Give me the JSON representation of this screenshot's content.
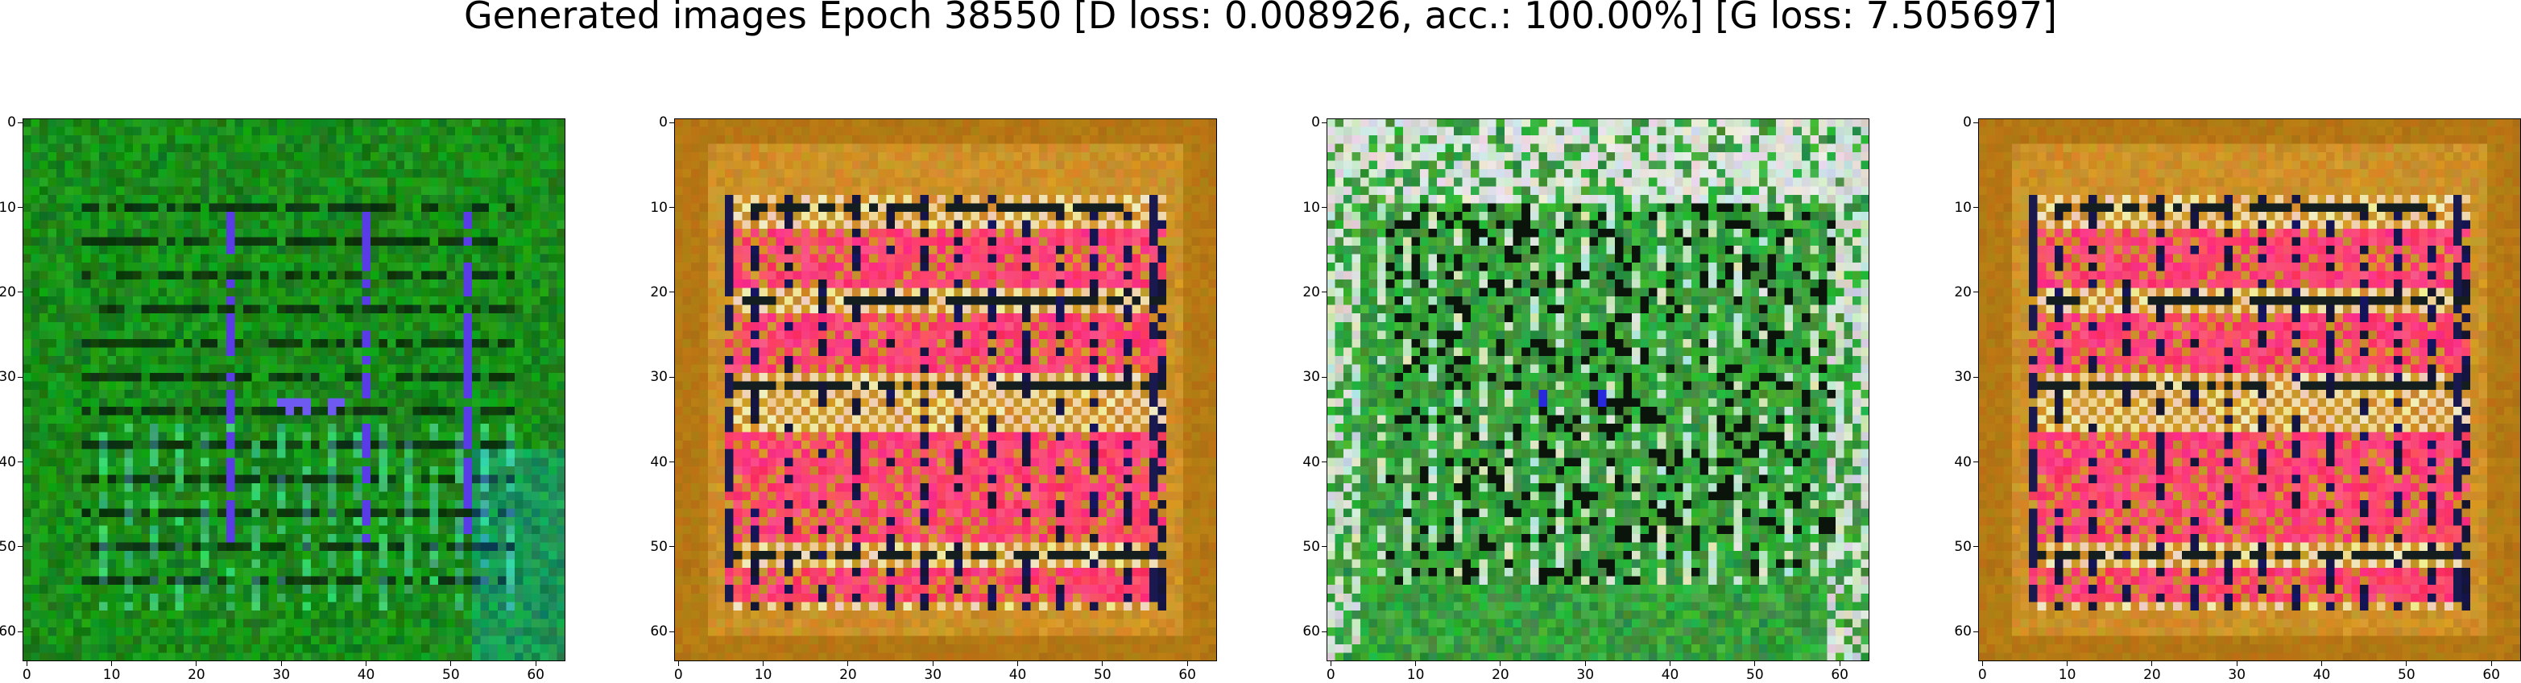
{
  "title": "Generated images Epoch 38550 [D loss: 0.008926, acc.: 100.00%] [G loss: 7.505697]",
  "axis": {
    "range": [
      0,
      63
    ],
    "ticks": [
      0,
      10,
      20,
      30,
      40,
      50,
      60
    ],
    "tick_labels": [
      "0",
      "10",
      "20",
      "30",
      "40",
      "50",
      "60"
    ]
  },
  "panels": [
    {
      "id": "sample-1",
      "palette": "dark-green",
      "base_color": "#1a7a1a",
      "accent_color": "#6a3cff"
    },
    {
      "id": "sample-2",
      "palette": "orange-pink",
      "base_color": "#c8901c",
      "accent_color": "#ff2f6a"
    },
    {
      "id": "sample-3",
      "palette": "green-white",
      "base_color": "#2a9a3a",
      "accent_color": "#d8d8d8"
    },
    {
      "id": "sample-4",
      "palette": "orange-pink",
      "base_color": "#c8901c",
      "accent_color": "#ff2f6a"
    }
  ]
}
